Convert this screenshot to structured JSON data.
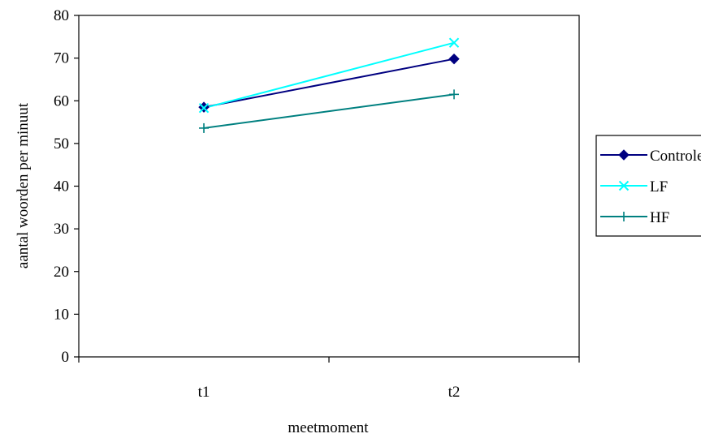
{
  "chart_data": {
    "type": "line",
    "categories": [
      "t1",
      "t2"
    ],
    "series": [
      {
        "name": "Controle",
        "values": [
          58.5,
          69.8
        ],
        "color": "#000080",
        "marker": "diamond"
      },
      {
        "name": "LF",
        "values": [
          58.3,
          73.6
        ],
        "color": "#00FFFF",
        "marker": "x"
      },
      {
        "name": "HF",
        "values": [
          53.6,
          61.5
        ],
        "color": "#008080",
        "marker": "plus"
      }
    ],
    "xlabel": "meetmoment",
    "ylabel": "aantal woorden per minuut",
    "ylim": [
      0,
      80
    ],
    "yticks": [
      0,
      10,
      20,
      30,
      40,
      50,
      60,
      70,
      80
    ],
    "grid": false,
    "legend_position": "right"
  }
}
